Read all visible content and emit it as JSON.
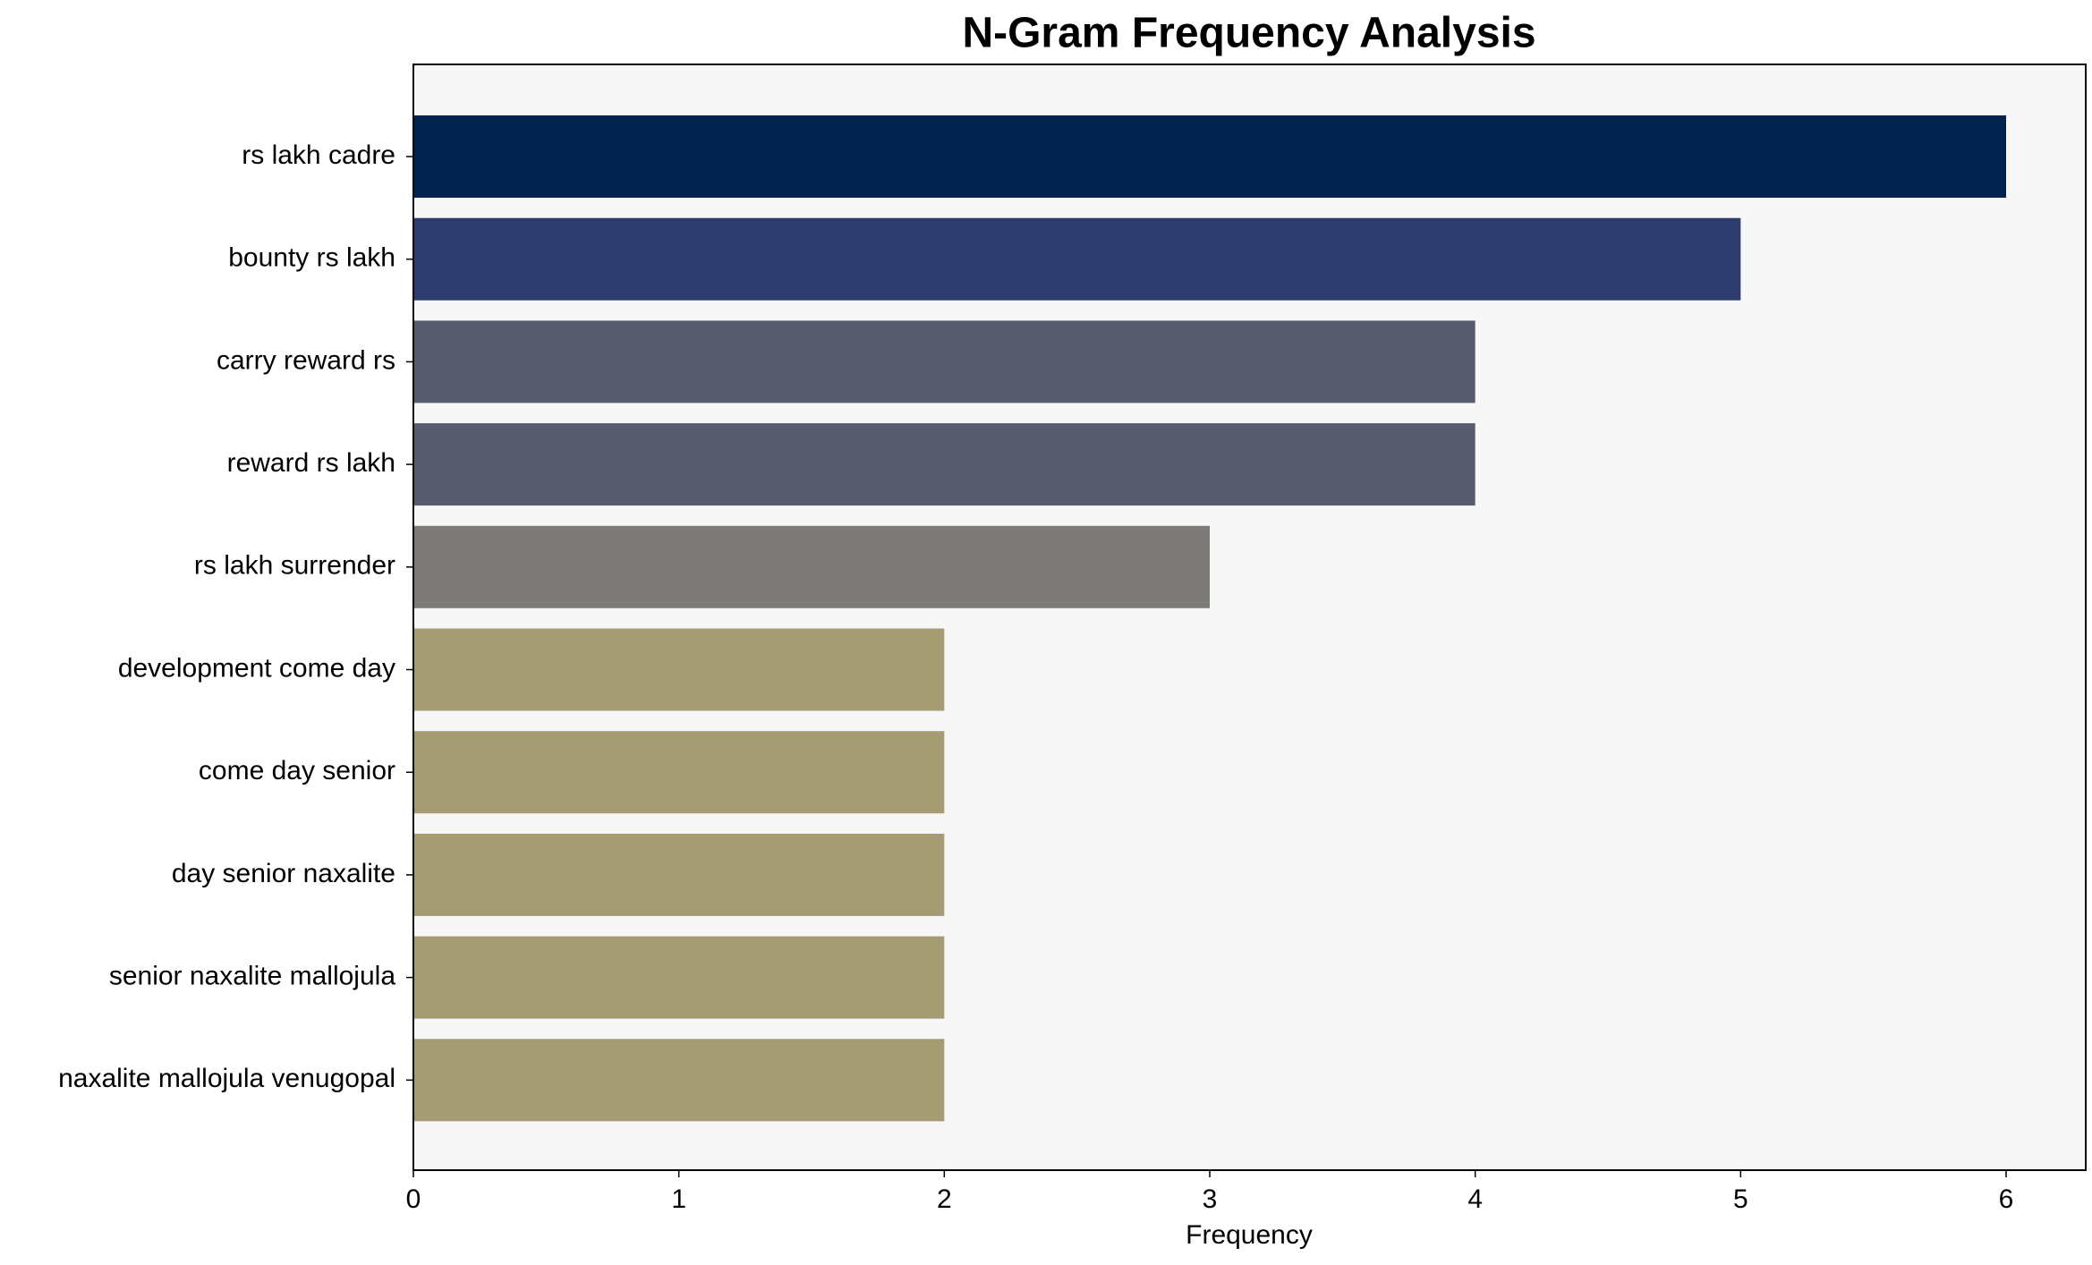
{
  "chart_data": {
    "type": "barh",
    "title": "N-Gram Frequency Analysis",
    "x_label": "Frequency",
    "categories": [
      "rs lakh cadre",
      "bounty rs lakh",
      "carry reward rs",
      "reward rs lakh",
      "rs lakh surrender",
      "development come day",
      "come day senior",
      "day senior naxalite",
      "senior naxalite mallojula",
      "naxalite mallojula venugopal"
    ],
    "values": [
      6,
      5,
      4,
      4,
      3,
      2,
      2,
      2,
      2,
      2
    ],
    "colors": [
      "#00224e",
      "#2c3d6e",
      "#575d6d",
      "#575d6d",
      "#7c7b78",
      "#a59c74",
      "#a59c74",
      "#a59c74",
      "#a59c74",
      "#a59c74"
    ],
    "xlim": [
      0,
      6.3
    ],
    "xticks": [
      0,
      1,
      2,
      3,
      4,
      5,
      6
    ],
    "grid": false
  }
}
